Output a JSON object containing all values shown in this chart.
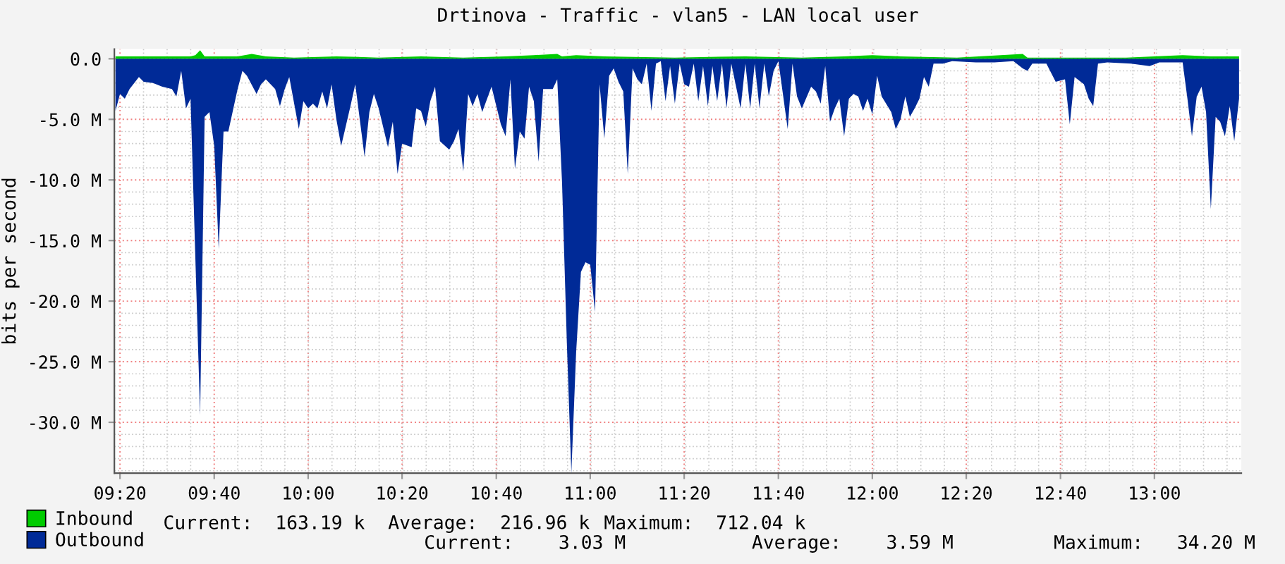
{
  "chart_data": {
    "type": "area",
    "title": "Drtinova - Traffic - vlan5 - LAN local user",
    "ylabel": "bits per second",
    "xlim": [
      9.313,
      13.308
    ],
    "ylim": [
      -34.2,
      0.8
    ],
    "xticks": [
      {
        "value": 9.333,
        "label": "09:20"
      },
      {
        "value": 9.667,
        "label": "09:40"
      },
      {
        "value": 10,
        "label": "10:00"
      },
      {
        "value": 10.333,
        "label": "10:20"
      },
      {
        "value": 10.667,
        "label": "10:40"
      },
      {
        "value": 11,
        "label": "11:00"
      },
      {
        "value": 11.333,
        "label": "11:20"
      },
      {
        "value": 11.667,
        "label": "11:40"
      },
      {
        "value": 12,
        "label": "12:00"
      },
      {
        "value": 12.333,
        "label": "12:20"
      },
      {
        "value": 12.667,
        "label": "12:40"
      },
      {
        "value": 13,
        "label": "13:00"
      }
    ],
    "yticks": [
      {
        "value": 0,
        "label": "0.0"
      },
      {
        "value": -5,
        "label": "-5.0 M"
      },
      {
        "value": -10,
        "label": "-10.0 M"
      },
      {
        "value": -15,
        "label": "-15.0 M"
      },
      {
        "value": -20,
        "label": "-20.0 M"
      },
      {
        "value": -25,
        "label": "-25.0 M"
      },
      {
        "value": -30,
        "label": "-30.0 M"
      }
    ],
    "grid": true,
    "legend": "bottom",
    "annotations": [
      "Current:  163.19 k",
      "Average:  216.96 k",
      "Maximum:  712.04 k",
      "Current:    3.03 M",
      "Average:    3.59 M",
      "Maximum:   34.20 M"
    ],
    "series": [
      {
        "name": "Outbound",
        "color": "#002a97",
        "x": [
          9.317,
          9.333,
          9.35,
          9.367,
          9.4,
          9.417,
          9.45,
          9.483,
          9.517,
          9.533,
          9.55,
          9.567,
          9.583,
          9.617,
          9.633,
          9.65,
          9.667,
          9.683,
          9.7,
          9.717,
          9.733,
          9.75,
          9.767,
          9.783,
          9.817,
          9.833,
          9.85,
          9.883,
          9.9,
          9.917,
          9.933,
          9.967,
          9.983,
          10,
          10.017,
          10.033,
          10.05,
          10.067,
          10.083,
          10.1,
          10.117,
          10.15,
          10.167,
          10.2,
          10.217,
          10.233,
          10.25,
          10.283,
          10.3,
          10.317,
          10.333,
          10.367,
          10.383,
          10.4,
          10.417,
          10.433,
          10.45,
          10.467,
          10.5,
          10.517,
          10.533,
          10.55,
          10.567,
          10.583,
          10.6,
          10.617,
          10.65,
          10.683,
          10.7,
          10.717,
          10.733,
          10.75,
          10.767,
          10.783,
          10.8,
          10.817,
          10.833,
          10.867,
          10.883,
          10.9,
          10.917,
          10.933,
          10.95,
          10.967,
          10.983,
          11,
          11.017,
          11.033,
          11.05,
          11.067,
          11.083,
          11.1,
          11.117,
          11.133,
          11.15,
          11.167,
          11.183,
          11.2,
          11.217,
          11.233,
          11.25,
          11.267,
          11.283,
          11.3,
          11.317,
          11.333,
          11.35,
          11.367,
          11.383,
          11.4,
          11.417,
          11.433,
          11.45,
          11.467,
          11.483,
          11.5,
          11.533,
          11.55,
          11.567,
          11.583,
          11.6,
          11.617,
          11.633,
          11.65,
          11.667,
          11.7,
          11.717,
          11.733,
          11.75,
          11.783,
          11.8,
          11.817,
          11.833,
          11.85,
          11.867,
          11.883,
          11.9,
          11.917,
          11.933,
          11.95,
          11.967,
          11.983,
          12,
          12.017,
          12.033,
          12.067,
          12.083,
          12.1,
          12.117,
          12.133,
          12.15,
          12.167,
          12.183,
          12.2,
          12.217,
          12.25,
          12.283,
          12.367,
          12.433,
          12.5,
          12.533,
          12.55,
          12.567,
          12.617,
          12.65,
          12.683,
          12.7,
          12.717,
          12.75,
          12.767,
          12.783,
          12.8,
          12.833,
          12.917,
          12.983,
          13.017,
          13.1,
          13.117,
          13.133,
          13.15,
          13.167,
          13.183,
          13.2,
          13.217,
          13.233,
          13.25,
          13.267,
          13.283,
          13.3
        ],
        "values": [
          -4.3,
          -2.9,
          -3.3,
          -2.5,
          -1.5,
          -1.9,
          -2.0,
          -2.3,
          -2.5,
          -3.1,
          -1.0,
          -4.1,
          -3.3,
          -29.4,
          -4.8,
          -4.4,
          -7.2,
          -15.7,
          -6.0,
          -6.0,
          -4.3,
          -2.5,
          -1.0,
          -1.4,
          -2.9,
          -2.1,
          -1.7,
          -2.5,
          -3.9,
          -2.5,
          -1.5,
          -5.8,
          -3.5,
          -4.1,
          -3.7,
          -4.1,
          -2.7,
          -4.1,
          -2.1,
          -5.0,
          -7.2,
          -3.9,
          -2.1,
          -8.1,
          -4.4,
          -2.9,
          -4.1,
          -7.3,
          -5.2,
          -9.5,
          -7.0,
          -7.3,
          -4.1,
          -4.3,
          -5.6,
          -3.5,
          -2.3,
          -6.8,
          -7.5,
          -6.8,
          -5.8,
          -9.3,
          -2.9,
          -3.9,
          -2.9,
          -4.4,
          -2.3,
          -5.4,
          -6.4,
          -1.7,
          -9.1,
          -6.0,
          -6.6,
          -2.3,
          -3.5,
          -8.5,
          -2.5,
          -2.5,
          -1.7,
          -10.2,
          -23.4,
          -34.2,
          -24.2,
          -17.6,
          -16.8,
          -17.0,
          -20.9,
          -2.1,
          -6.6,
          -1.4,
          -0.8,
          -1.9,
          -2.7,
          -9.5,
          -0.8,
          -1.7,
          -2.1,
          -0.4,
          -4.3,
          -0.4,
          -0.2,
          -3.5,
          -0.6,
          -3.7,
          -0.4,
          -2.1,
          -2.3,
          -0.4,
          -3.5,
          -0.6,
          -3.9,
          -0.6,
          -3.5,
          -0.4,
          -4.1,
          -0.4,
          -4.1,
          -0.4,
          -4.1,
          -0.4,
          -4.1,
          -0.4,
          -3.1,
          -1.0,
          -0.2,
          -5.8,
          -0.4,
          -3.1,
          -4.1,
          -2.3,
          -2.7,
          -3.7,
          -0.6,
          -5.2,
          -4.1,
          -3.3,
          -6.4,
          -3.3,
          -2.9,
          -3.1,
          -4.3,
          -3.3,
          -4.6,
          -1.4,
          -3.1,
          -4.4,
          -5.8,
          -5.0,
          -3.1,
          -4.8,
          -4.1,
          -3.3,
          -1.5,
          -2.3,
          -0.4,
          -0.4,
          -0.2,
          -0.3,
          -0.3,
          -0.2,
          -0.8,
          -1.0,
          -0.4,
          -0.4,
          -1.9,
          -1.7,
          -5.4,
          -1.5,
          -2.1,
          -3.3,
          -3.9,
          -0.4,
          -0.3,
          -0.4,
          -0.6,
          -0.3,
          -0.3,
          -3.3,
          -6.4,
          -3.1,
          -2.3,
          -4.4,
          -12.4,
          -4.8,
          -5.2,
          -6.4,
          -3.9,
          -6.8,
          -3.3
        ]
      },
      {
        "name": "Inbound",
        "color": "#00cc00",
        "x": [
          9.317,
          9.45,
          9.583,
          9.6,
          9.617,
          9.633,
          9.75,
          9.8,
          9.85,
          9.95,
          10.1,
          10.25,
          10.4,
          10.55,
          10.7,
          10.8,
          10.883,
          10.9,
          10.95,
          11.05,
          11.3,
          11.55,
          11.75,
          11.9,
          12,
          12.1,
          12.3,
          12.533,
          12.55,
          12.7,
          12.9,
          13.1,
          13.2,
          13.3
        ],
        "values": [
          0.2,
          0.2,
          0.2,
          0.3,
          0.7,
          0.2,
          0.2,
          0.4,
          0.2,
          0.1,
          0.2,
          0.1,
          0.2,
          0.1,
          0.2,
          0.3,
          0.4,
          0.2,
          0.3,
          0.2,
          0.1,
          0.2,
          0.1,
          0.2,
          0.3,
          0.2,
          0.1,
          0.4,
          0.1,
          0.1,
          0.1,
          0.3,
          0.2,
          0.2
        ]
      }
    ]
  }
}
